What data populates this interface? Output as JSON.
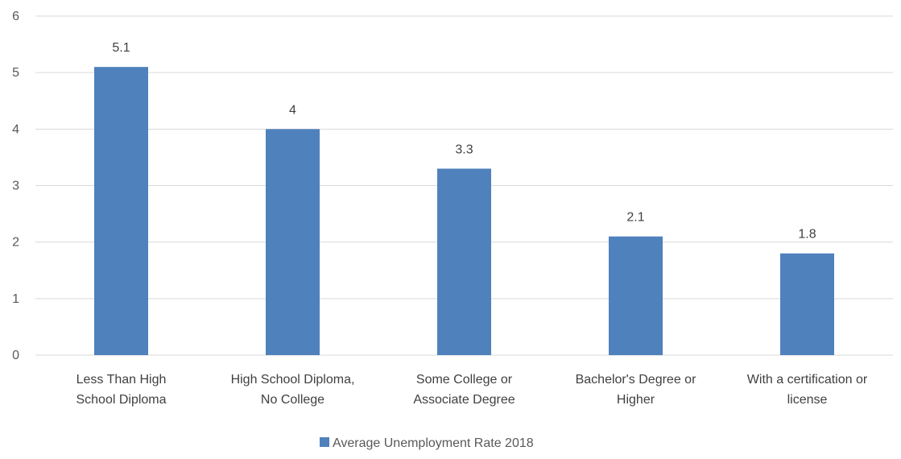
{
  "chart_data": {
    "type": "bar",
    "categories": [
      [
        "Less Than High",
        "School Diploma"
      ],
      [
        "High School Diploma,",
        "No College"
      ],
      [
        "Some College or",
        "Associate Degree"
      ],
      [
        "Bachelor's Degree or",
        "Higher"
      ],
      [
        "With a certification or",
        "license"
      ]
    ],
    "series": [
      {
        "name": "Average Unemployment Rate 2018",
        "values": [
          5.1,
          4,
          3.3,
          2.1,
          1.8
        ],
        "color": "#4f81bd"
      }
    ],
    "data_labels": [
      "5.1",
      "4",
      "3.3",
      "2.1",
      "1.8"
    ],
    "yticks": [
      "0",
      "1",
      "2",
      "3",
      "4",
      "5",
      "6"
    ],
    "ylim": [
      0,
      6
    ],
    "grid": true,
    "legend": "bottom",
    "title": "",
    "xlabel": "",
    "ylabel": ""
  }
}
